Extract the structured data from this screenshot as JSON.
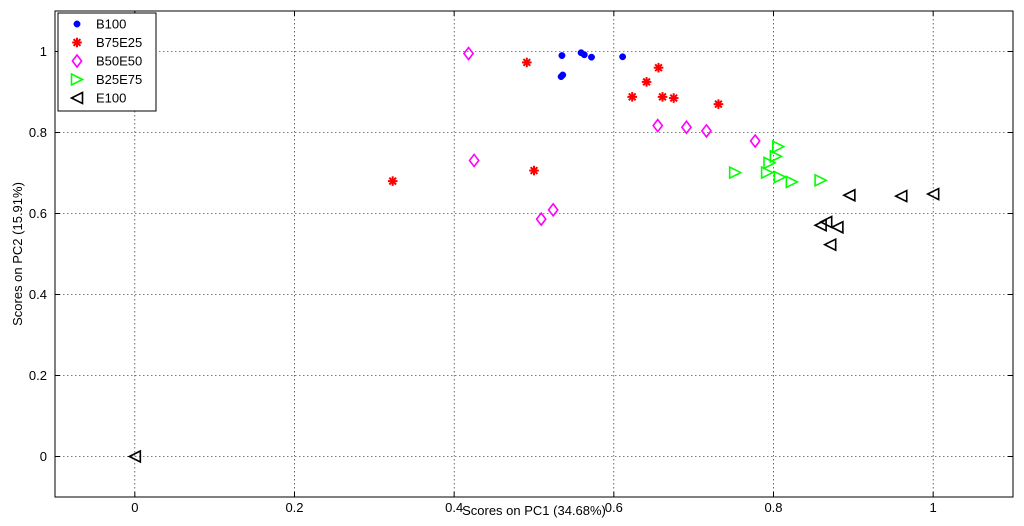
{
  "chart_data": {
    "type": "scatter",
    "title": "",
    "xlabel": "Scores on PC1 (34.68%)",
    "ylabel": "Scores on PC2 (15.91%)",
    "xlim": [
      -0.1,
      1.1
    ],
    "ylim": [
      -0.1,
      1.1
    ],
    "xticks": [
      0,
      0.2,
      0.4,
      0.6,
      0.8,
      1
    ],
    "yticks": [
      0,
      0.2,
      0.4,
      0.6,
      0.8,
      1
    ],
    "grid": true,
    "legend_position": "top-left",
    "series": [
      {
        "name": "B100",
        "marker": "dot",
        "color": "#0000ff",
        "points": [
          [
            0.535,
            0.99
          ],
          [
            0.559,
            0.997
          ],
          [
            0.563,
            0.992
          ],
          [
            0.572,
            0.986
          ],
          [
            0.536,
            0.942
          ],
          [
            0.534,
            0.938
          ],
          [
            0.611,
            0.987
          ]
        ]
      },
      {
        "name": "B75E25",
        "marker": "asterisk",
        "color": "#ff0000",
        "points": [
          [
            0.491,
            0.973
          ],
          [
            0.656,
            0.96
          ],
          [
            0.641,
            0.925
          ],
          [
            0.623,
            0.888
          ],
          [
            0.661,
            0.888
          ],
          [
            0.675,
            0.885
          ],
          [
            0.731,
            0.87
          ],
          [
            0.5,
            0.706
          ],
          [
            0.323,
            0.68
          ]
        ]
      },
      {
        "name": "B50E50",
        "marker": "diamond",
        "color": "#ff00ff",
        "points": [
          [
            0.418,
            0.995
          ],
          [
            0.655,
            0.817
          ],
          [
            0.691,
            0.813
          ],
          [
            0.716,
            0.804
          ],
          [
            0.777,
            0.779
          ],
          [
            0.425,
            0.731
          ],
          [
            0.524,
            0.609
          ],
          [
            0.509,
            0.586
          ]
        ]
      },
      {
        "name": "B25E75",
        "marker": "triangle-right",
        "color": "#00ff00",
        "points": [
          [
            0.806,
            0.765
          ],
          [
            0.803,
            0.741
          ],
          [
            0.795,
            0.725
          ],
          [
            0.752,
            0.701
          ],
          [
            0.792,
            0.701
          ],
          [
            0.808,
            0.69
          ],
          [
            0.823,
            0.678
          ],
          [
            0.859,
            0.682
          ]
        ]
      },
      {
        "name": "E100",
        "marker": "triangle-left",
        "color": "#000000",
        "points": [
          [
            0.0,
            0.0
          ],
          [
            0.895,
            0.645
          ],
          [
            0.96,
            0.643
          ],
          [
            1.0,
            0.648
          ],
          [
            0.866,
            0.579
          ],
          [
            0.859,
            0.571
          ],
          [
            0.88,
            0.566
          ],
          [
            0.871,
            0.523
          ]
        ]
      }
    ]
  }
}
